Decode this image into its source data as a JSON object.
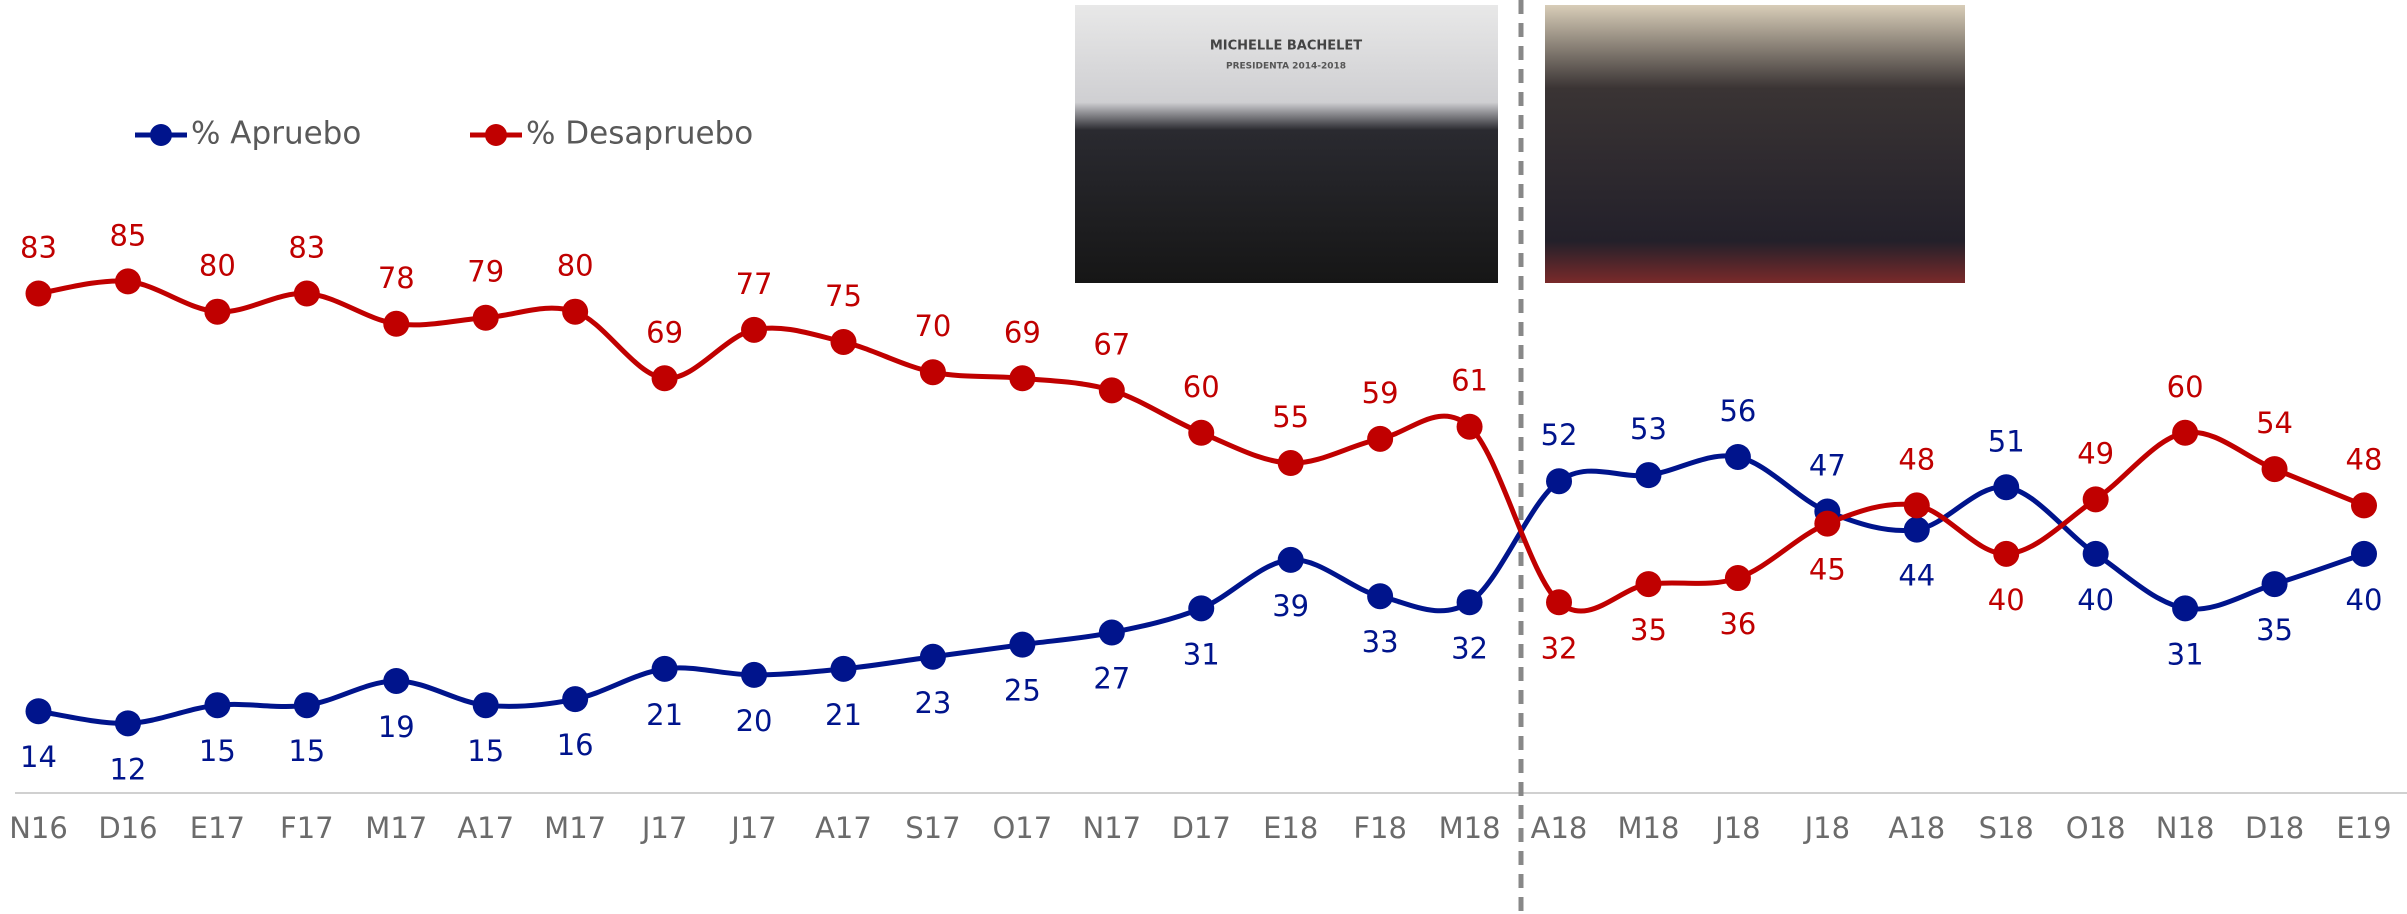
{
  "chart_data": {
    "type": "line",
    "categories": [
      "N16",
      "D16",
      "E17",
      "F17",
      "M17",
      "A17",
      "M17",
      "J17",
      "J17",
      "A17",
      "S17",
      "O17",
      "N17",
      "D17",
      "E18",
      "F18",
      "M18",
      "A18",
      "M18",
      "J18",
      "J18",
      "A18",
      "S18",
      "O18",
      "N18",
      "D18",
      "E19"
    ],
    "series": [
      {
        "name": "% Apruebo",
        "color": "#00148c",
        "values": [
          14,
          12,
          15,
          15,
          19,
          15,
          16,
          21,
          20,
          21,
          23,
          25,
          27,
          31,
          39,
          33,
          32,
          52,
          53,
          56,
          47,
          44,
          51,
          40,
          31,
          35,
          40
        ]
      },
      {
        "name": "% Desapruebo",
        "color": "#c00000",
        "values": [
          83,
          85,
          80,
          83,
          78,
          79,
          80,
          69,
          77,
          75,
          70,
          69,
          67,
          60,
          55,
          59,
          61,
          32,
          35,
          36,
          45,
          48,
          40,
          49,
          60,
          54,
          48
        ]
      }
    ],
    "ylim": [
      0,
      130
    ],
    "legend": "top-left",
    "annotations": [
      "MICHELLE BACHELET",
      "PRESIDENTA 2014-2018"
    ]
  }
}
